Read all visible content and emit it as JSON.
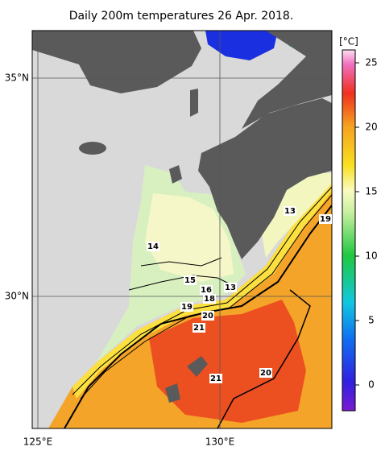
{
  "title": "Daily 200m temperatures 26 Apr. 2018.",
  "lat_labels": [
    "35°N",
    "30°N"
  ],
  "lon_labels": [
    "125°E",
    "130°E"
  ],
  "colorbar": {
    "unit": "[°C]",
    "lim": [
      -2,
      26
    ],
    "ticks": [
      0,
      5,
      10,
      15,
      20,
      25
    ]
  },
  "contour_labels": [
    "13",
    "19",
    "14",
    "15",
    "16",
    "18",
    "13",
    "19",
    "20",
    "21",
    "21",
    "20"
  ]
}
